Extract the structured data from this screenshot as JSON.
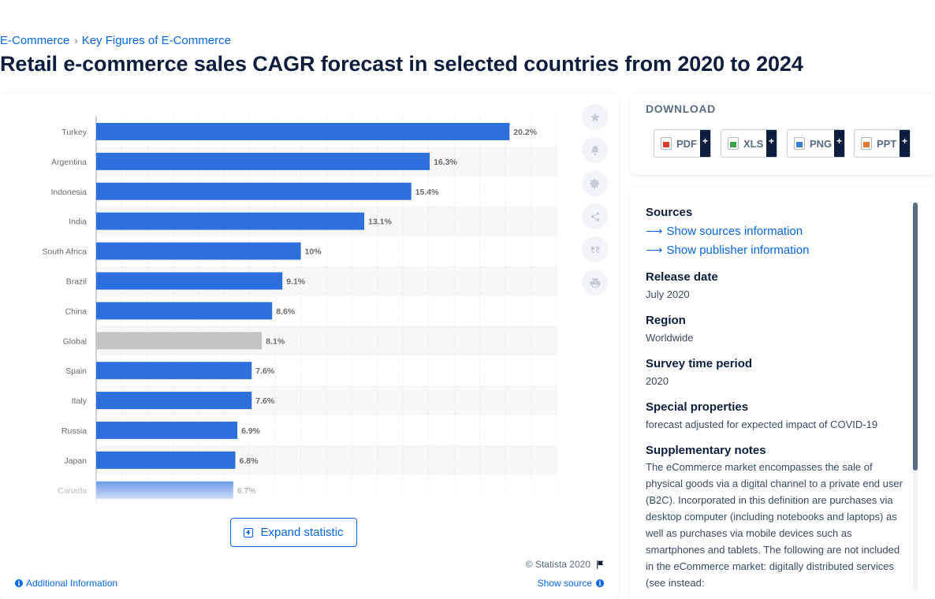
{
  "breadcrumb": {
    "items": [
      "E-Commerce",
      "Key Figures of E-Commerce"
    ],
    "separator": "›"
  },
  "page_title": "Retail e-commerce sales CAGR forecast in selected countries from 2020 to 2024",
  "chart_data": {
    "type": "bar",
    "orientation": "horizontal",
    "categories": [
      "Turkey",
      "Argentina",
      "Indonesia",
      "India",
      "South Africa",
      "Brazil",
      "China",
      "Global",
      "Spain",
      "Italy",
      "Russia",
      "Japan",
      "Canada"
    ],
    "values": [
      20.2,
      16.3,
      15.4,
      13.1,
      10,
      9.1,
      8.6,
      8.1,
      7.6,
      7.6,
      6.9,
      6.8,
      6.7
    ],
    "value_labels": [
      "20.2%",
      "16.3%",
      "15.4%",
      "13.1%",
      "10%",
      "9.1%",
      "8.6%",
      "8.1%",
      "7.6%",
      "7.6%",
      "6.9%",
      "6.8%",
      "6.7%"
    ],
    "highlight_category": "Global",
    "colors": {
      "bar": "#2e6fde",
      "highlight": "#c4c4c4",
      "label": "#6b6b6b",
      "grid": "#e3e3e3",
      "band": "#f7f7f7"
    },
    "xlim": [
      0,
      22.5
    ],
    "grid": true,
    "legend": false
  },
  "toolbar_icons": [
    "star-icon",
    "bell-icon",
    "gear-icon",
    "share-icon",
    "quote-icon",
    "print-icon"
  ],
  "expand_label": "Expand statistic",
  "copyright": "© Statista 2020",
  "additional_info": "Additional Information",
  "show_source": "Show source",
  "download": {
    "heading": "DOWNLOAD",
    "formats": [
      "PDF",
      "XLS",
      "PNG",
      "PPT"
    ],
    "plus": "+"
  },
  "info": {
    "sources_heading": "Sources",
    "sources_link": "Show sources information",
    "publisher_link": "Show publisher information",
    "release_heading": "Release date",
    "release_value": "July 2020",
    "region_heading": "Region",
    "region_value": "Worldwide",
    "survey_heading": "Survey time period",
    "survey_value": "2020",
    "special_heading": "Special properties",
    "special_value": "forecast adjusted for expected impact of COVID-19",
    "supp_heading": "Supplementary notes",
    "supp_text": "The eCommerce market encompasses the sale of physical goods via a digital channel to a private end user (B2C). Incorporated in this definition are purchases via desktop computer (including notebooks and laptops) as well as purchases via mobile devices such as smartphones and tablets. The following are not included in the eCommerce market: digitally distributed services (see instead:"
  }
}
